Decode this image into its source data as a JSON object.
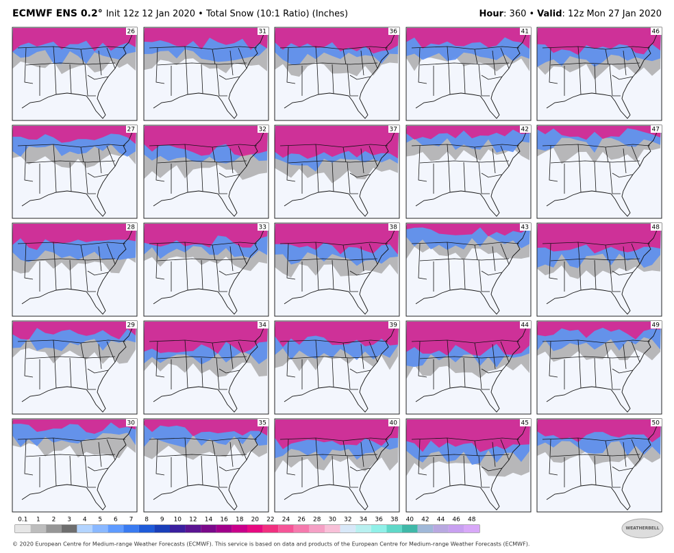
{
  "header": {
    "title": "ECMWF ENS 0.2°",
    "subtitle": "Init 12z 12 Jan 2020 • Total Snow (10:1 Ratio) (Inches)",
    "hour_label": "Hour",
    "hour_text": ": 360 •",
    "valid_label": "Valid",
    "valid_text": ": 12z Mon 27 Jan 2020"
  },
  "members": [
    26,
    31,
    36,
    41,
    46,
    27,
    32,
    37,
    42,
    47,
    28,
    33,
    38,
    43,
    48,
    29,
    34,
    39,
    44,
    49,
    30,
    35,
    40,
    45,
    50
  ],
  "colorbar": {
    "labels": [
      0.1,
      1,
      2,
      3,
      4,
      5,
      6,
      7,
      8,
      9,
      10,
      12,
      14,
      16,
      18,
      20,
      22,
      24,
      26,
      28,
      30,
      32,
      34,
      36,
      38,
      40,
      42,
      44,
      46,
      48
    ],
    "colors": [
      "#e6e6e6",
      "#bdbdbd",
      "#969696",
      "#6e6e6e",
      "#b3d4ff",
      "#8ab8ff",
      "#5f9bff",
      "#3a7bf0",
      "#1f5bd8",
      "#1a3fb8",
      "#3a1f9e",
      "#5a1491",
      "#7a0a8a",
      "#a0008a",
      "#c8008a",
      "#e60a80",
      "#f0307f",
      "#f55597",
      "#f57aad",
      "#f5a0c5",
      "#f8c0d8",
      "#d8e8f8",
      "#b8f0f0",
      "#90f0e8",
      "#60d8c8",
      "#40b8a8",
      "#a0b8d8",
      "#b8a8e0",
      "#c8a0f0",
      "#d8a8f8"
    ]
  },
  "logo": "WEATHERBELL",
  "footer": "© 2020 European Centre for Medium-range Weather Forecasts (ECMWF). This service is based on data and products of the European Centre for Medium-range Weather Forecasts (ECMWF)."
}
